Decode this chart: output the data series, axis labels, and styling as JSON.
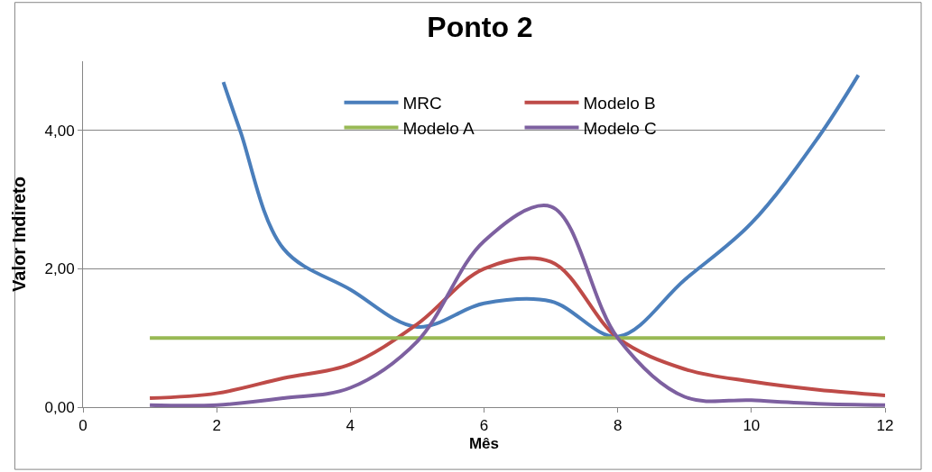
{
  "chart_data": {
    "type": "line",
    "title": "Ponto 2",
    "xlabel": "Mês",
    "ylabel": "Valor Indireto",
    "x": [
      1,
      2,
      3,
      4,
      5,
      6,
      7,
      8,
      9,
      10,
      11,
      12
    ],
    "series": [
      {
        "name": "MRC",
        "color": "#4a7ebb",
        "x": [
          2.1,
          2.35,
          3,
          4,
          5,
          6,
          7,
          8,
          9,
          10,
          11,
          11.6
        ],
        "values": [
          4.7,
          4.0,
          2.29,
          1.7,
          1.16,
          1.5,
          1.53,
          1.02,
          1.84,
          2.66,
          3.9,
          4.8
        ]
      },
      {
        "name": "Modelo B",
        "color": "#be4b48",
        "values": [
          0.13,
          0.2,
          0.42,
          0.62,
          1.2,
          2.0,
          2.1,
          1.0,
          0.55,
          0.37,
          0.25,
          0.17
        ]
      },
      {
        "name": "Modelo A",
        "color": "#98b954",
        "values": [
          1,
          1,
          1,
          1,
          1,
          1,
          1,
          1,
          1,
          1,
          1,
          1
        ]
      },
      {
        "name": "Modelo C",
        "color": "#7d60a0",
        "values": [
          0.03,
          0.03,
          0.13,
          0.28,
          0.95,
          2.4,
          2.9,
          1.0,
          0.15,
          0.1,
          0.05,
          0.03
        ]
      }
    ],
    "xlim": [
      0,
      12
    ],
    "xticks": [
      0,
      2,
      4,
      6,
      8,
      10,
      12
    ],
    "ylim": [
      0,
      5
    ],
    "yticks": [
      {
        "value": 0,
        "label": "0,00"
      },
      {
        "value": 2,
        "label": "2,00"
      },
      {
        "value": 4,
        "label": "4,00"
      }
    ],
    "grid": "y",
    "legend": "top",
    "marker": "none",
    "line_style": "solid"
  }
}
